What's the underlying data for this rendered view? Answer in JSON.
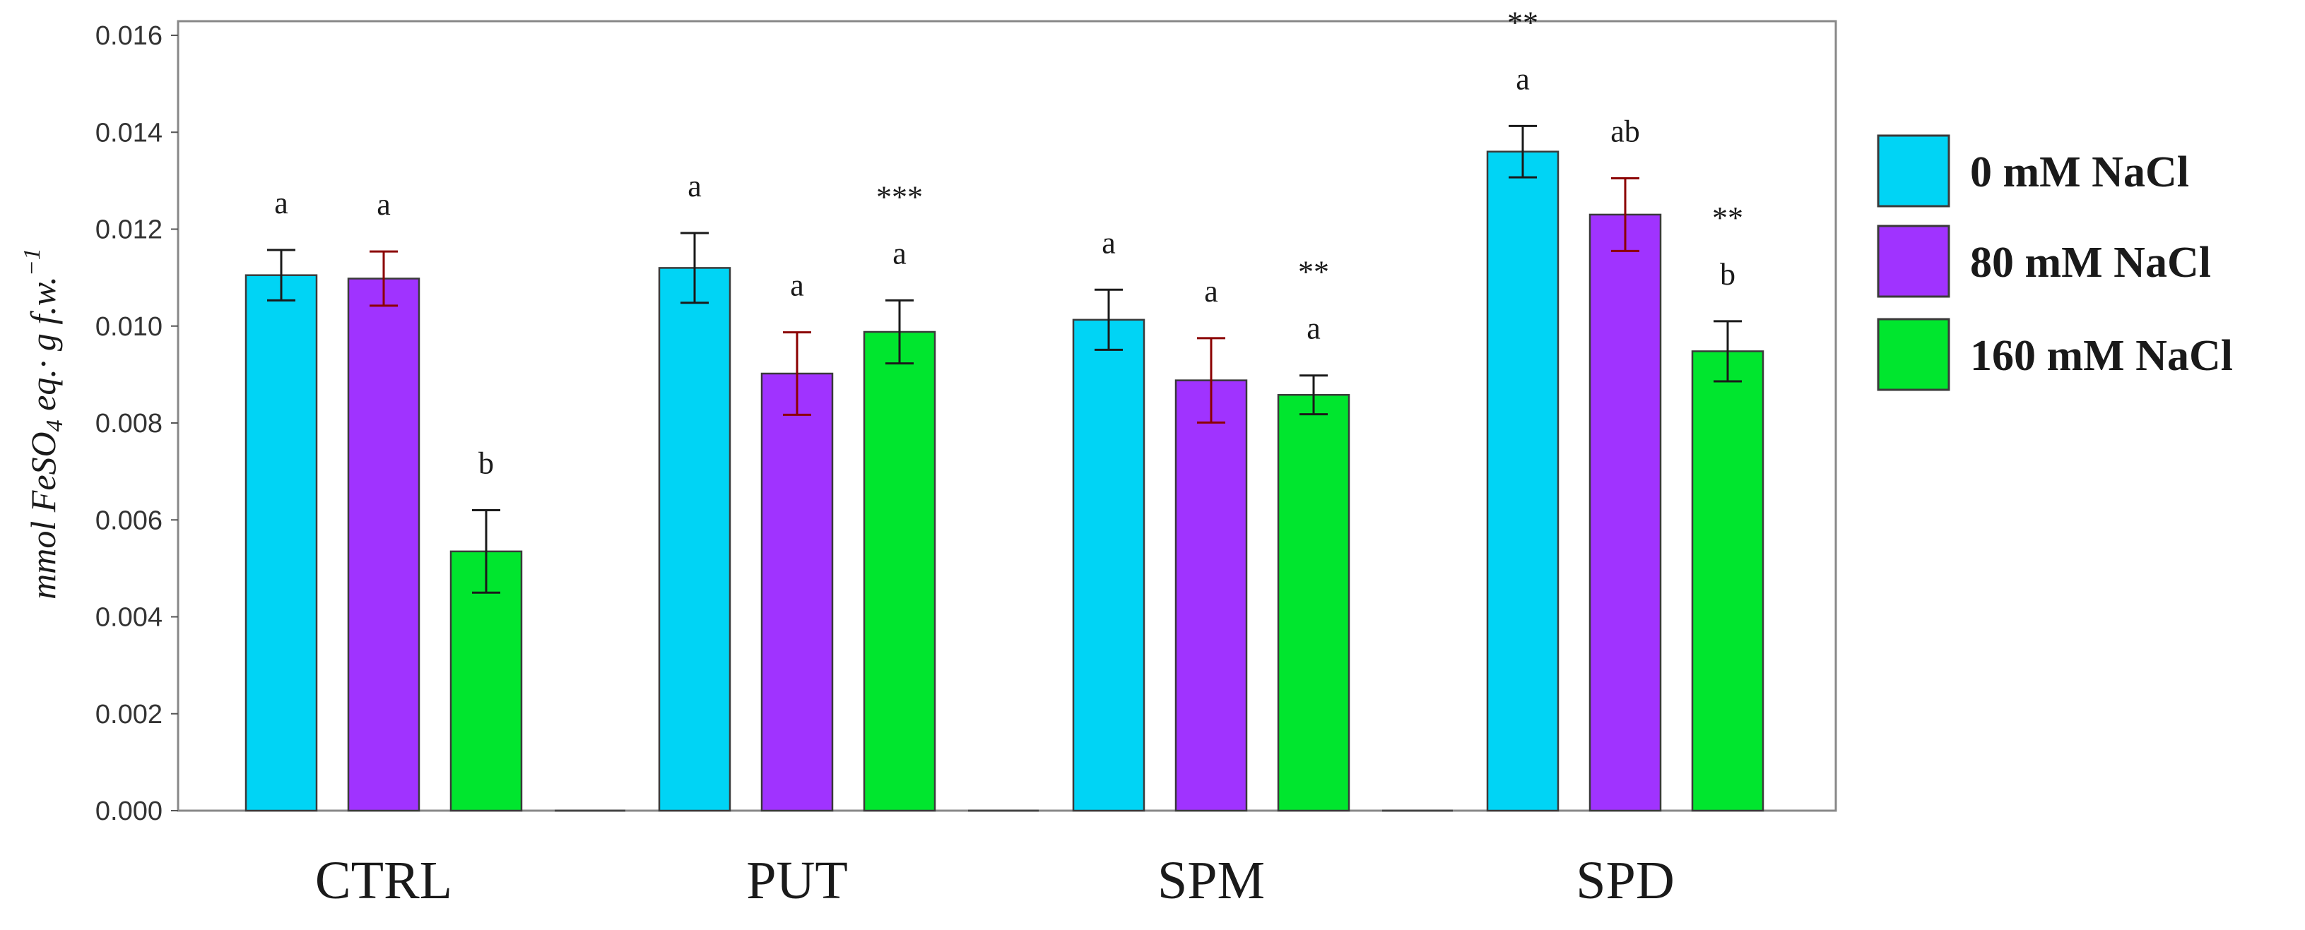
{
  "chart_data": {
    "type": "bar",
    "title": "",
    "xlabel": "",
    "ylabel": {
      "main": "mmol FeSO",
      "subscript": "4",
      "middle": " eq.· g f.w.",
      "superscript": "−1"
    },
    "ylim": [
      0,
      0.017
    ],
    "yticks": [
      "0.000",
      "0.002",
      "0.004",
      "0.006",
      "0.008",
      "0.010",
      "0.012",
      "0.014",
      "0.016"
    ],
    "ytick_values": [
      0,
      0.002,
      0.004,
      0.006,
      0.008,
      0.01,
      0.012,
      0.014,
      0.016
    ],
    "grid": false,
    "legend_position": "right",
    "categories": [
      "CTRL",
      "PUT",
      "SPM",
      "SPD"
    ],
    "series": [
      {
        "name": "0 mM NaCl",
        "color": "#00d4f5",
        "errorbar_color": "#1a1a1a",
        "values": [
          0.01105,
          0.0112,
          0.01013,
          0.0136
        ],
        "errors": [
          0.00052,
          0.00072,
          0.00062,
          0.00053
        ],
        "letters": [
          "a",
          "a",
          "a",
          "a"
        ],
        "stars": [
          "",
          "",
          "",
          "**"
        ]
      },
      {
        "name": "80 mM NaCl",
        "color": "#a033ff",
        "errorbar_color": "#8b0000",
        "values": [
          0.01098,
          0.00902,
          0.00888,
          0.0123
        ],
        "errors": [
          0.00056,
          0.00085,
          0.00087,
          0.00075
        ],
        "letters": [
          "a",
          "a",
          "a",
          "ab"
        ],
        "stars": [
          "",
          "",
          "",
          ""
        ]
      },
      {
        "name": "160 mM NaCl",
        "color": "#00e62e",
        "errorbar_color": "#1a1a1a",
        "values": [
          0.00535,
          0.00988,
          0.00858,
          0.00948
        ],
        "errors": [
          0.00085,
          0.00065,
          0.0004,
          0.00062
        ],
        "letters": [
          "b",
          "a",
          "a",
          "b"
        ],
        "stars": [
          "",
          "***",
          "**",
          "**"
        ]
      }
    ]
  }
}
